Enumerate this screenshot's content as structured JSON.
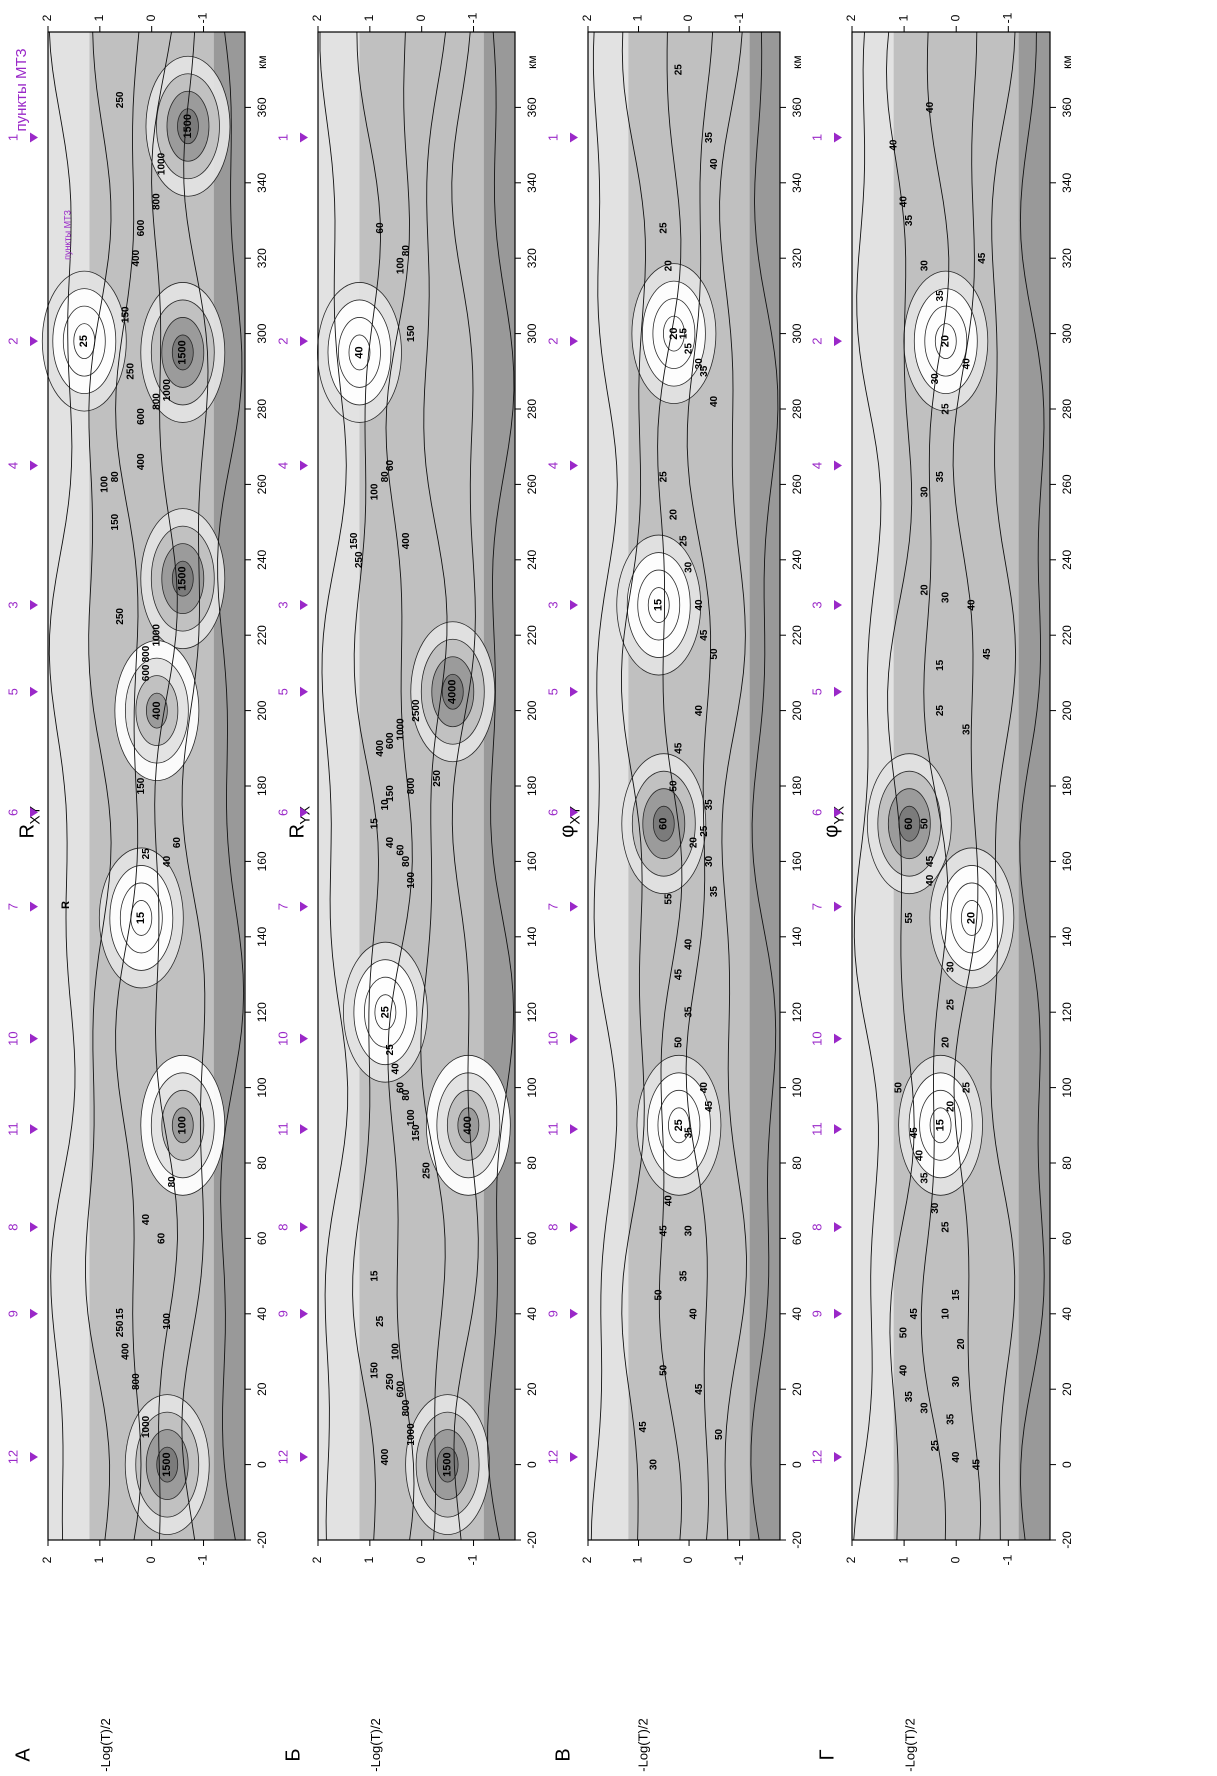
{
  "figure": {
    "panel_ylabel": "-Log(T)/2",
    "x_unit": "км",
    "sites_label": "пункты МТЗ",
    "sites_label_small": "пункты МТЗ",
    "r_marker": "R"
  },
  "sites": [
    {
      "name": "12",
      "km": 2
    },
    {
      "name": "9",
      "km": 40
    },
    {
      "name": "8",
      "km": 63
    },
    {
      "name": "11",
      "km": 89
    },
    {
      "name": "10",
      "km": 113
    },
    {
      "name": "7",
      "km": 148
    },
    {
      "name": "6",
      "km": 173
    },
    {
      "name": "5",
      "km": 205
    },
    {
      "name": "3",
      "km": 228
    },
    {
      "name": "4",
      "km": 265
    },
    {
      "name": "2",
      "km": 298
    },
    {
      "name": "1",
      "km": 352
    }
  ],
  "colors": {
    "site_accent": "#9a28c8",
    "shade_light": "#e2e2e2",
    "shade_mid": "#c0c0c0",
    "shade_dark": "#999999",
    "shade_darker": "#7a7a7a"
  },
  "chart_data": [
    {
      "type": "heatmap",
      "panel_letter": "А",
      "title": "R",
      "title_sub": "XY",
      "xlabel": "км",
      "ylabel": "-Log(T)/2",
      "xlim": [
        -20,
        380
      ],
      "ylim": [
        -1.8,
        2
      ],
      "x_ticks": [
        "-20",
        "0",
        "20",
        "40",
        "60",
        "80",
        "100",
        "120",
        "140",
        "160",
        "180",
        "200",
        "220",
        "240",
        "260",
        "280",
        "300",
        "320",
        "340",
        "360"
      ],
      "y_ticks": [
        "2",
        "1",
        "0",
        "-1"
      ],
      "regions": [
        {
          "label": "1500",
          "km": 0,
          "y": -0.3,
          "level": 3
        },
        {
          "label": "1500",
          "km": 235,
          "y": -0.6,
          "level": 3
        },
        {
          "label": "1500",
          "km": 295,
          "y": -0.6,
          "level": 3
        },
        {
          "label": "1500",
          "km": 355,
          "y": -0.7,
          "level": 3
        },
        {
          "label": "100",
          "km": 90,
          "y": -0.6,
          "level": 2
        },
        {
          "label": "400",
          "km": 200,
          "y": -0.1,
          "level": 2
        },
        {
          "label": "15",
          "km": 145,
          "y": 0.2,
          "level": 0
        },
        {
          "label": "25",
          "km": 298,
          "y": 1.3,
          "level": 0
        }
      ],
      "contour_labels": [
        {
          "text": "1000",
          "km": 10,
          "y": 0.1
        },
        {
          "text": "800",
          "km": 22,
          "y": 0.3
        },
        {
          "text": "400",
          "km": 30,
          "y": 0.5
        },
        {
          "text": "250",
          "km": 36,
          "y": 0.6
        },
        {
          "text": "100",
          "km": 38,
          "y": -0.3
        },
        {
          "text": "60",
          "km": 60,
          "y": -0.2
        },
        {
          "text": "40",
          "km": 65,
          "y": 0.1
        },
        {
          "text": "80",
          "km": 75,
          "y": -0.4
        },
        {
          "text": "15",
          "km": 40,
          "y": 0.6
        },
        {
          "text": "25",
          "km": 162,
          "y": 0.1
        },
        {
          "text": "40",
          "km": 160,
          "y": -0.3
        },
        {
          "text": "60",
          "km": 165,
          "y": -0.5
        },
        {
          "text": "150",
          "km": 180,
          "y": 0.2
        },
        {
          "text": "600",
          "km": 210,
          "y": 0.1
        },
        {
          "text": "800",
          "km": 215,
          "y": 0.1
        },
        {
          "text": "1000",
          "km": 220,
          "y": -0.1
        },
        {
          "text": "250",
          "km": 225,
          "y": 0.6
        },
        {
          "text": "150",
          "km": 250,
          "y": 0.7
        },
        {
          "text": "100",
          "km": 260,
          "y": 0.9
        },
        {
          "text": "80",
          "km": 262,
          "y": 0.7
        },
        {
          "text": "400",
          "km": 266,
          "y": 0.2
        },
        {
          "text": "600",
          "km": 278,
          "y": 0.2
        },
        {
          "text": "800",
          "km": 282,
          "y": -0.1
        },
        {
          "text": "1000",
          "km": 285,
          "y": -0.3
        },
        {
          "text": "250",
          "km": 290,
          "y": 0.4
        },
        {
          "text": "150",
          "km": 305,
          "y": 0.5
        },
        {
          "text": "400",
          "km": 320,
          "y": 0.3
        },
        {
          "text": "600",
          "km": 328,
          "y": 0.2
        },
        {
          "text": "800",
          "km": 335,
          "y": -0.1
        },
        {
          "text": "1000",
          "km": 345,
          "y": -0.2
        },
        {
          "text": "250",
          "km": 362,
          "y": 0.6
        }
      ]
    },
    {
      "type": "heatmap",
      "panel_letter": "Б",
      "title": "R",
      "title_sub": "YX",
      "xlabel": "км",
      "ylabel": "-Log(T)/2",
      "xlim": [
        -20,
        380
      ],
      "ylim": [
        -1.8,
        2
      ],
      "x_ticks": [
        "-20",
        "0",
        "20",
        "40",
        "60",
        "80",
        "100",
        "120",
        "140",
        "160",
        "180",
        "200",
        "220",
        "240",
        "260",
        "280",
        "300",
        "320",
        "340",
        "360"
      ],
      "y_ticks": [
        "2",
        "1",
        "0",
        "-1"
      ],
      "regions": [
        {
          "label": "1500",
          "km": 0,
          "y": -0.5,
          "level": 3
        },
        {
          "label": "400",
          "km": 90,
          "y": -0.9,
          "level": 2
        },
        {
          "label": "4000",
          "km": 205,
          "y": -0.6,
          "level": 3
        },
        {
          "label": "25",
          "km": 120,
          "y": 0.7,
          "level": 0
        },
        {
          "label": "40",
          "km": 295,
          "y": 1.2,
          "level": 0
        }
      ],
      "contour_labels": [
        {
          "text": "1000",
          "km": 8,
          "y": 0.2
        },
        {
          "text": "800",
          "km": 15,
          "y": 0.3
        },
        {
          "text": "600",
          "km": 20,
          "y": 0.4
        },
        {
          "text": "400",
          "km": 2,
          "y": 0.7
        },
        {
          "text": "250",
          "km": 22,
          "y": 0.6
        },
        {
          "text": "150",
          "km": 25,
          "y": 0.9
        },
        {
          "text": "100",
          "km": 30,
          "y": 0.5
        },
        {
          "text": "25",
          "km": 38,
          "y": 0.8
        },
        {
          "text": "15",
          "km": 50,
          "y": 0.9
        },
        {
          "text": "250",
          "km": 78,
          "y": -0.1
        },
        {
          "text": "150",
          "km": 88,
          "y": 0.1
        },
        {
          "text": "100",
          "km": 92,
          "y": 0.2
        },
        {
          "text": "80",
          "km": 98,
          "y": 0.3
        },
        {
          "text": "60",
          "km": 100,
          "y": 0.4
        },
        {
          "text": "40",
          "km": 105,
          "y": 0.5
        },
        {
          "text": "25",
          "km": 110,
          "y": 0.6
        },
        {
          "text": "100",
          "km": 155,
          "y": 0.2
        },
        {
          "text": "80",
          "km": 160,
          "y": 0.3
        },
        {
          "text": "60",
          "km": 163,
          "y": 0.4
        },
        {
          "text": "40",
          "km": 165,
          "y": 0.6
        },
        {
          "text": "15",
          "km": 170,
          "y": 0.9
        },
        {
          "text": "10",
          "km": 175,
          "y": 0.7
        },
        {
          "text": "150",
          "km": 178,
          "y": 0.6
        },
        {
          "text": "800",
          "km": 180,
          "y": 0.2
        },
        {
          "text": "250",
          "km": 182,
          "y": -0.3
        },
        {
          "text": "400",
          "km": 190,
          "y": 0.8
        },
        {
          "text": "600",
          "km": 192,
          "y": 0.6
        },
        {
          "text": "1000",
          "km": 195,
          "y": 0.4
        },
        {
          "text": "2500",
          "km": 200,
          "y": 0.1
        },
        {
          "text": "250",
          "km": 240,
          "y": 1.2
        },
        {
          "text": "150",
          "km": 245,
          "y": 1.3
        },
        {
          "text": "400",
          "km": 245,
          "y": 0.3
        },
        {
          "text": "100",
          "km": 258,
          "y": 0.9
        },
        {
          "text": "80",
          "km": 262,
          "y": 0.7
        },
        {
          "text": "60",
          "km": 265,
          "y": 0.6
        },
        {
          "text": "150",
          "km": 300,
          "y": 0.2
        },
        {
          "text": "100",
          "km": 318,
          "y": 0.4
        },
        {
          "text": "80",
          "km": 322,
          "y": 0.3
        },
        {
          "text": "60",
          "km": 328,
          "y": 0.8
        }
      ]
    },
    {
      "type": "heatmap",
      "panel_letter": "В",
      "title": "φ",
      "title_sub": "XY",
      "xlabel": "км",
      "ylabel": "-Log(T)/2",
      "xlim": [
        -20,
        380
      ],
      "ylim": [
        -1.8,
        2
      ],
      "x_ticks": [
        "-20",
        "0",
        "20",
        "40",
        "60",
        "80",
        "100",
        "120",
        "140",
        "160",
        "180",
        "200",
        "220",
        "240",
        "260",
        "280",
        "300",
        "320",
        "340",
        "360"
      ],
      "y_ticks": [
        "2",
        "1",
        "0",
        "-1"
      ],
      "regions": [
        {
          "label": "60",
          "km": 170,
          "y": 0.5,
          "level": 3
        },
        {
          "label": "20",
          "km": 300,
          "y": 0.3,
          "level": 0
        },
        {
          "label": "15",
          "km": 228,
          "y": 0.6,
          "level": 0
        },
        {
          "label": "25",
          "km": 90,
          "y": 0.2,
          "level": 0
        }
      ],
      "contour_labels": [
        {
          "text": "30",
          "km": 0,
          "y": 0.7
        },
        {
          "text": "45",
          "km": 10,
          "y": 0.9
        },
        {
          "text": "50",
          "km": 25,
          "y": 0.5
        },
        {
          "text": "50",
          "km": 8,
          "y": -0.6
        },
        {
          "text": "45",
          "km": 20,
          "y": -0.2
        },
        {
          "text": "40",
          "km": 40,
          "y": -0.1
        },
        {
          "text": "35",
          "km": 50,
          "y": 0.1
        },
        {
          "text": "30",
          "km": 62,
          "y": 0.0
        },
        {
          "text": "50",
          "km": 45,
          "y": 0.6
        },
        {
          "text": "45",
          "km": 62,
          "y": 0.5
        },
        {
          "text": "40",
          "km": 70,
          "y": 0.4
        },
        {
          "text": "35",
          "km": 88,
          "y": 0.0
        },
        {
          "text": "45",
          "km": 95,
          "y": -0.4
        },
        {
          "text": "40",
          "km": 100,
          "y": -0.3
        },
        {
          "text": "50",
          "km": 112,
          "y": 0.2
        },
        {
          "text": "35",
          "km": 120,
          "y": 0.0
        },
        {
          "text": "45",
          "km": 130,
          "y": 0.2
        },
        {
          "text": "40",
          "km": 138,
          "y": 0.0
        },
        {
          "text": "55",
          "km": 150,
          "y": 0.4
        },
        {
          "text": "35",
          "km": 152,
          "y": -0.5
        },
        {
          "text": "30",
          "km": 160,
          "y": -0.4
        },
        {
          "text": "20",
          "km": 165,
          "y": -0.1
        },
        {
          "text": "25",
          "km": 168,
          "y": -0.3
        },
        {
          "text": "35",
          "km": 175,
          "y": -0.4
        },
        {
          "text": "50",
          "km": 180,
          "y": 0.3
        },
        {
          "text": "45",
          "km": 190,
          "y": 0.2
        },
        {
          "text": "40",
          "km": 200,
          "y": -0.2
        },
        {
          "text": "50",
          "km": 215,
          "y": -0.5
        },
        {
          "text": "45",
          "km": 220,
          "y": -0.3
        },
        {
          "text": "40",
          "km": 228,
          "y": -0.2
        },
        {
          "text": "30",
          "km": 238,
          "y": 0.0
        },
        {
          "text": "25",
          "km": 245,
          "y": 0.1
        },
        {
          "text": "20",
          "km": 252,
          "y": 0.3
        },
        {
          "text": "25",
          "km": 262,
          "y": 0.5
        },
        {
          "text": "40",
          "km": 282,
          "y": -0.5
        },
        {
          "text": "35",
          "km": 290,
          "y": -0.3
        },
        {
          "text": "30",
          "km": 292,
          "y": -0.2
        },
        {
          "text": "25",
          "km": 296,
          "y": 0.0
        },
        {
          "text": "15",
          "km": 300,
          "y": 0.1
        },
        {
          "text": "20",
          "km": 318,
          "y": 0.4
        },
        {
          "text": "25",
          "km": 328,
          "y": 0.5
        },
        {
          "text": "40",
          "km": 345,
          "y": -0.5
        },
        {
          "text": "35",
          "km": 352,
          "y": -0.4
        },
        {
          "text": "25",
          "km": 370,
          "y": 0.2
        }
      ]
    },
    {
      "type": "heatmap",
      "panel_letter": "Г",
      "title": "φ",
      "title_sub": "YX",
      "xlabel": "км",
      "ylabel": "-Log(T)/2",
      "xlim": [
        -20,
        380
      ],
      "ylim": [
        -1.8,
        2
      ],
      "x_ticks": [
        "-20",
        "0",
        "20",
        "40",
        "60",
        "80",
        "100",
        "120",
        "140",
        "160",
        "180",
        "200",
        "220",
        "240",
        "260",
        "280",
        "300",
        "320",
        "340",
        "360"
      ],
      "y_ticks": [
        "2",
        "1",
        "0",
        "-1"
      ],
      "regions": [
        {
          "label": "60",
          "km": 170,
          "y": 0.9,
          "level": 3
        },
        {
          "label": "20",
          "km": 145,
          "y": -0.3,
          "level": 0
        },
        {
          "label": "15",
          "km": 90,
          "y": 0.3,
          "level": 0
        },
        {
          "label": "20",
          "km": 298,
          "y": 0.2,
          "level": 0
        }
      ],
      "contour_labels": [
        {
          "text": "45",
          "km": 0,
          "y": -0.4
        },
        {
          "text": "40",
          "km": 2,
          "y": 0.0
        },
        {
          "text": "25",
          "km": 5,
          "y": 0.4
        },
        {
          "text": "30",
          "km": 15,
          "y": 0.6
        },
        {
          "text": "35",
          "km": 18,
          "y": 0.9
        },
        {
          "text": "40",
          "km": 25,
          "y": 1.0
        },
        {
          "text": "30",
          "km": 22,
          "y": 0.0
        },
        {
          "text": "35",
          "km": 12,
          "y": 0.1
        },
        {
          "text": "50",
          "km": 35,
          "y": 1.0
        },
        {
          "text": "45",
          "km": 40,
          "y": 0.8
        },
        {
          "text": "10",
          "km": 40,
          "y": 0.2
        },
        {
          "text": "15",
          "km": 45,
          "y": 0.0
        },
        {
          "text": "20",
          "km": 32,
          "y": -0.1
        },
        {
          "text": "25",
          "km": 63,
          "y": 0.2
        },
        {
          "text": "30",
          "km": 68,
          "y": 0.4
        },
        {
          "text": "35",
          "km": 76,
          "y": 0.6
        },
        {
          "text": "40",
          "km": 82,
          "y": 0.7
        },
        {
          "text": "45",
          "km": 88,
          "y": 0.8
        },
        {
          "text": "20",
          "km": 95,
          "y": 0.1
        },
        {
          "text": "50",
          "km": 100,
          "y": 1.1
        },
        {
          "text": "25",
          "km": 100,
          "y": -0.2
        },
        {
          "text": "20",
          "km": 112,
          "y": 0.2
        },
        {
          "text": "25",
          "km": 122,
          "y": 0.1
        },
        {
          "text": "30",
          "km": 132,
          "y": 0.1
        },
        {
          "text": "55",
          "km": 145,
          "y": 0.9
        },
        {
          "text": "40",
          "km": 155,
          "y": 0.5
        },
        {
          "text": "45",
          "km": 160,
          "y": 0.5
        },
        {
          "text": "50",
          "km": 170,
          "y": 0.6
        },
        {
          "text": "35",
          "km": 195,
          "y": -0.2
        },
        {
          "text": "25",
          "km": 200,
          "y": 0.3
        },
        {
          "text": "15",
          "km": 212,
          "y": 0.3
        },
        {
          "text": "45",
          "km": 215,
          "y": -0.6
        },
        {
          "text": "40",
          "km": 228,
          "y": -0.3
        },
        {
          "text": "30",
          "km": 230,
          "y": 0.2
        },
        {
          "text": "20",
          "km": 232,
          "y": 0.6
        },
        {
          "text": "30",
          "km": 258,
          "y": 0.6
        },
        {
          "text": "35",
          "km": 262,
          "y": 0.3
        },
        {
          "text": "25",
          "km": 280,
          "y": 0.2
        },
        {
          "text": "30",
          "km": 288,
          "y": 0.4
        },
        {
          "text": "40",
          "km": 292,
          "y": -0.2
        },
        {
          "text": "35",
          "km": 310,
          "y": 0.3
        },
        {
          "text": "30",
          "km": 318,
          "y": 0.6
        },
        {
          "text": "35",
          "km": 330,
          "y": 0.9
        },
        {
          "text": "40",
          "km": 335,
          "y": 1.0
        },
        {
          "text": "45",
          "km": 320,
          "y": -0.5
        },
        {
          "text": "40",
          "km": 350,
          "y": 1.2
        },
        {
          "text": "40",
          "km": 360,
          "y": 0.5
        }
      ]
    }
  ]
}
